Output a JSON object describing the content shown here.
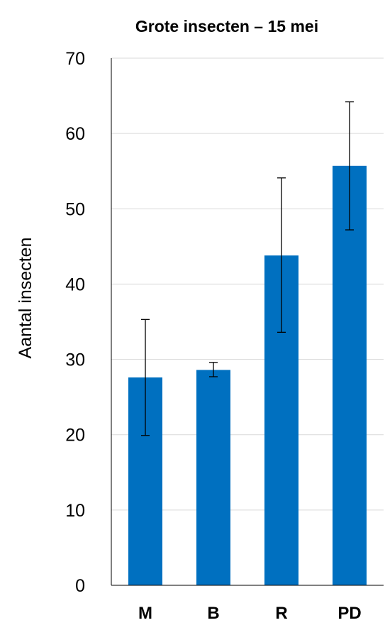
{
  "chart_data": {
    "type": "bar",
    "title": "Grote insecten – 15 mei",
    "xlabel": "",
    "ylabel": "Aantal insecten",
    "categories": [
      "M",
      "B",
      "R",
      "PD"
    ],
    "values": [
      27.6,
      28.6,
      43.8,
      55.7
    ],
    "error_low": [
      19.9,
      27.7,
      33.6,
      47.2
    ],
    "error_high": [
      35.3,
      29.6,
      54.1,
      64.2
    ],
    "ylim": [
      0,
      70
    ],
    "yticks": [
      0,
      10,
      20,
      30,
      40,
      50,
      60,
      70
    ],
    "grid": true,
    "legend": "none",
    "bar_color": "#0070C0",
    "grid_color": "#D9D9D9"
  }
}
